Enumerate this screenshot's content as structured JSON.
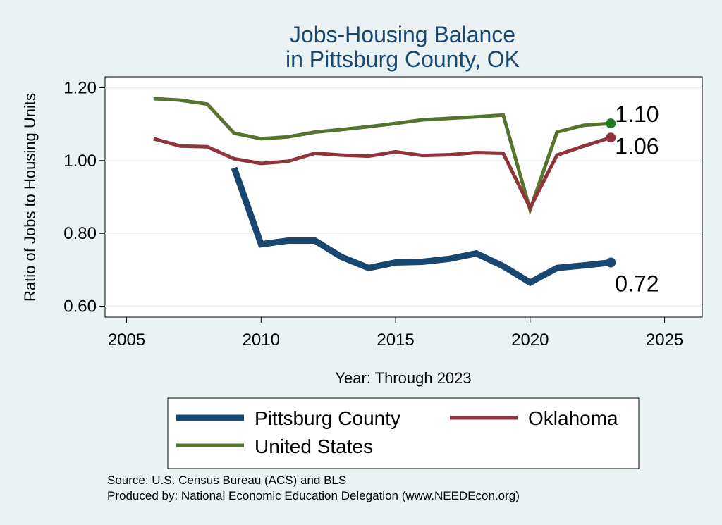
{
  "chart_data": {
    "type": "line",
    "title": [
      "Jobs-Housing Balance",
      "in Pittsburg County, OK"
    ],
    "xlabel": "Year: Through 2023",
    "ylabel": "Ratio of Jobs to Housing Units",
    "xlim": [
      2004.2,
      2026.4
    ],
    "ylim": [
      0.57,
      1.23
    ],
    "x_ticks": [
      2005,
      2010,
      2015,
      2020,
      2025
    ],
    "y_ticks": [
      0.6,
      0.8,
      1.0,
      1.2
    ],
    "y_tick_labels": [
      "0.60",
      "0.80",
      "1.00",
      "1.20"
    ],
    "grid": true,
    "legend_position": "bottom",
    "series": [
      {
        "name": "Pittsburg County",
        "color": "#1a476f",
        "x": [
          2009,
          2010,
          2011,
          2012,
          2013,
          2014,
          2015,
          2016,
          2017,
          2018,
          2019,
          2020,
          2021,
          2022,
          2023
        ],
        "values": [
          0.98,
          0.77,
          0.78,
          0.78,
          0.735,
          0.705,
          0.72,
          0.722,
          0.73,
          0.745,
          0.71,
          0.665,
          0.705,
          0.712,
          0.72
        ],
        "end_label": "0.72"
      },
      {
        "name": "Oklahoma",
        "color": "#90353b",
        "x": [
          2006,
          2007,
          2008,
          2009,
          2010,
          2011,
          2012,
          2013,
          2014,
          2015,
          2016,
          2017,
          2018,
          2019,
          2020,
          2021,
          2022,
          2023
        ],
        "values": [
          1.06,
          1.04,
          1.038,
          1.005,
          0.992,
          0.998,
          1.02,
          1.015,
          1.012,
          1.024,
          1.014,
          1.016,
          1.022,
          1.02,
          0.87,
          1.015,
          1.04,
          1.063
        ],
        "end_label": "1.06"
      },
      {
        "name": "United States",
        "color": "#55752f",
        "x": [
          2006,
          2007,
          2008,
          2009,
          2010,
          2011,
          2012,
          2013,
          2014,
          2015,
          2016,
          2017,
          2018,
          2019,
          2020,
          2021,
          2022,
          2023
        ],
        "values": [
          1.17,
          1.166,
          1.155,
          1.075,
          1.06,
          1.065,
          1.078,
          1.085,
          1.093,
          1.102,
          1.112,
          1.116,
          1.12,
          1.125,
          0.865,
          1.078,
          1.097,
          1.102
        ],
        "end_label": "1.10"
      }
    ],
    "end_marker_colors": [
      "#1a476f",
      "#90353b",
      "#1f7a1f"
    ]
  },
  "source_lines": [
    "Source: U.S. Census Bureau (ACS) and BLS",
    "Produced by: National Economic Education Delegation (www.NEEDEcon.org)"
  ]
}
